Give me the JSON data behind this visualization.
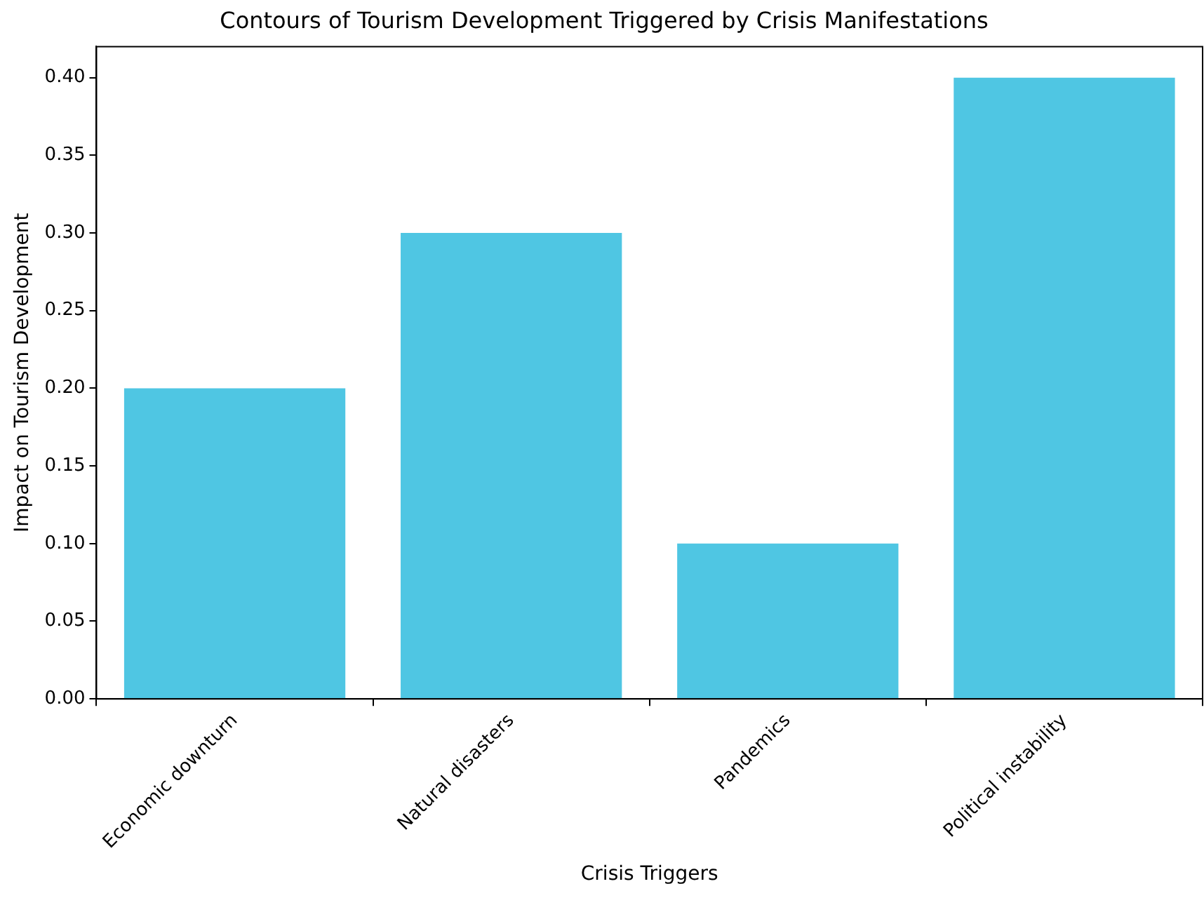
{
  "chart_data": {
    "type": "bar",
    "title": "Contours of Tourism Development Triggered by Crisis Manifestations",
    "xlabel": "Crisis Triggers",
    "ylabel": "Impact on Tourism Development",
    "categories": [
      "Economic downturn",
      "Natural disasters",
      "Pandemics",
      "Political instability"
    ],
    "values": [
      0.2,
      0.3,
      0.1,
      0.4
    ],
    "color": "#4fc6e3",
    "ylim": [
      0,
      0.42
    ],
    "yticks": [
      {
        "value": 0,
        "label": "0.00"
      },
      0.05,
      {
        "value": 0.1,
        "label": "0.10"
      },
      0.15,
      {
        "value": 0.2,
        "label": "0.20"
      },
      0.25,
      {
        "value": 0.3,
        "label": "0.30"
      },
      0.35,
      {
        "value": 0.4,
        "label": "0.40"
      }
    ],
    "grid": false,
    "legend": false
  }
}
